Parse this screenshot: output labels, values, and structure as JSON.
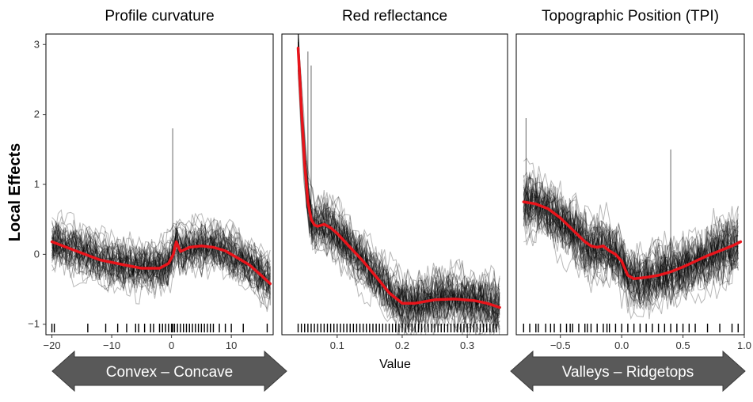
{
  "figure": {
    "ylabel": "Local Effects",
    "xlabel": "Value",
    "y_ticks": [
      -1,
      0,
      1,
      2,
      3
    ],
    "colors": {
      "mean_line": "#e8141b",
      "ice_lines": "#000000",
      "panel_border": "#000000",
      "arrow_fill": "#595959",
      "arrow_text": "#ffffff"
    }
  },
  "annotations": [
    {
      "text": "Convex – Concave",
      "panel": 0
    },
    {
      "text": "Valleys – Ridgetops",
      "panel": 2
    }
  ],
  "chart_data": [
    {
      "type": "line",
      "title": "Profile curvature",
      "x_ticks": [
        -20,
        -10,
        0,
        10
      ],
      "xlim": [
        -21,
        17
      ],
      "ylim": [
        -1.15,
        3.15
      ],
      "grid": false,
      "series": [
        {
          "style": "mean",
          "x": [
            -20,
            -16,
            -12,
            -8,
            -5,
            -2,
            -0.5,
            0.3,
            0.8,
            1.5,
            3,
            5,
            7,
            9,
            11,
            13,
            15,
            16.5
          ],
          "y": [
            0.18,
            0.05,
            -0.08,
            -0.15,
            -0.2,
            -0.2,
            -0.13,
            0.0,
            0.18,
            0.04,
            0.1,
            0.12,
            0.1,
            0.05,
            -0.05,
            -0.15,
            -0.3,
            -0.42
          ]
        }
      ],
      "ice_region": {
        "x_range": [
          -20,
          16.5
        ],
        "y_spread": 0.45,
        "spikes": [
          {
            "x": 0.2,
            "y": 1.8
          }
        ]
      },
      "rug": [
        -20,
        -19.6,
        -14,
        -11,
        -9,
        -7.5,
        -6,
        -5.5,
        -4.5,
        -3.5,
        -3,
        -2,
        -1.5,
        -1,
        -0.5,
        0,
        0.2,
        0.5,
        1,
        1.5,
        2,
        2.5,
        3,
        3.5,
        4,
        4.5,
        5,
        5.5,
        6,
        6.5,
        7,
        8,
        9,
        10,
        12,
        16
      ]
    },
    {
      "type": "line",
      "title": "Red reflectance",
      "x_ticks": [
        0.1,
        0.2,
        0.3
      ],
      "xlim": [
        0.015,
        0.362
      ],
      "ylim": [
        -1.15,
        3.15
      ],
      "grid": false,
      "series": [
        {
          "style": "mean",
          "x": [
            0.04,
            0.045,
            0.05,
            0.055,
            0.06,
            0.065,
            0.07,
            0.08,
            0.09,
            0.1,
            0.12,
            0.14,
            0.16,
            0.18,
            0.2,
            0.22,
            0.25,
            0.28,
            0.31,
            0.33,
            0.35
          ],
          "y": [
            2.95,
            2.1,
            1.3,
            0.75,
            0.5,
            0.42,
            0.4,
            0.43,
            0.38,
            0.3,
            0.1,
            -0.1,
            -0.32,
            -0.55,
            -0.7,
            -0.7,
            -0.65,
            -0.64,
            -0.66,
            -0.7,
            -0.76
          ]
        }
      ],
      "ice_region": {
        "x_range": [
          0.04,
          0.35
        ],
        "y_spread": 0.5,
        "spikes": [
          {
            "x": 0.055,
            "y": 2.9
          },
          {
            "x": 0.06,
            "y": 2.7
          }
        ]
      },
      "rug": [
        0.04,
        0.045,
        0.05,
        0.055,
        0.06,
        0.065,
        0.07,
        0.075,
        0.08,
        0.085,
        0.09,
        0.095,
        0.1,
        0.105,
        0.11,
        0.115,
        0.12,
        0.125,
        0.13,
        0.135,
        0.14,
        0.145,
        0.15,
        0.155,
        0.16,
        0.165,
        0.17,
        0.175,
        0.18,
        0.185,
        0.19,
        0.195,
        0.2,
        0.205,
        0.21,
        0.215,
        0.22,
        0.225,
        0.23,
        0.235,
        0.24,
        0.245,
        0.25,
        0.255,
        0.26,
        0.265,
        0.27,
        0.275,
        0.28,
        0.285,
        0.29,
        0.295,
        0.3,
        0.305,
        0.31,
        0.315,
        0.32,
        0.325,
        0.33,
        0.335,
        0.34,
        0.345
      ]
    },
    {
      "type": "line",
      "title": "Topographic Position (TPI)",
      "x_ticks": [
        -0.5,
        0.0,
        0.5,
        1.0
      ],
      "xlim": [
        -0.86,
        1.0
      ],
      "ylim": [
        -1.15,
        3.15
      ],
      "grid": false,
      "series": [
        {
          "style": "mean",
          "x": [
            -0.8,
            -0.7,
            -0.6,
            -0.5,
            -0.4,
            -0.3,
            -0.25,
            -0.2,
            -0.15,
            -0.1,
            -0.05,
            0.0,
            0.05,
            0.1,
            0.2,
            0.3,
            0.4,
            0.5,
            0.6,
            0.7,
            0.8,
            0.9,
            0.97
          ],
          "y": [
            0.75,
            0.72,
            0.65,
            0.52,
            0.35,
            0.18,
            0.12,
            0.1,
            0.12,
            0.05,
            0.0,
            -0.1,
            -0.3,
            -0.35,
            -0.33,
            -0.3,
            -0.25,
            -0.18,
            -0.1,
            -0.02,
            0.05,
            0.12,
            0.18
          ]
        }
      ],
      "ice_region": {
        "x_range": [
          -0.8,
          0.95
        ],
        "y_spread": 0.6,
        "spikes": [
          {
            "x": -0.78,
            "y": 1.95
          },
          {
            "x": 0.4,
            "y": 1.5
          }
        ]
      },
      "rug": [
        -0.8,
        -0.75,
        -0.7,
        -0.68,
        -0.62,
        -0.58,
        -0.55,
        -0.5,
        -0.45,
        -0.42,
        -0.4,
        -0.35,
        -0.3,
        -0.28,
        -0.25,
        -0.2,
        -0.15,
        -0.12,
        -0.1,
        -0.05,
        0.0,
        0.05,
        0.1,
        0.15,
        0.2,
        0.25,
        0.3,
        0.35,
        0.4,
        0.45,
        0.5,
        0.55,
        0.6,
        0.7,
        0.8,
        0.9,
        0.95
      ]
    }
  ]
}
